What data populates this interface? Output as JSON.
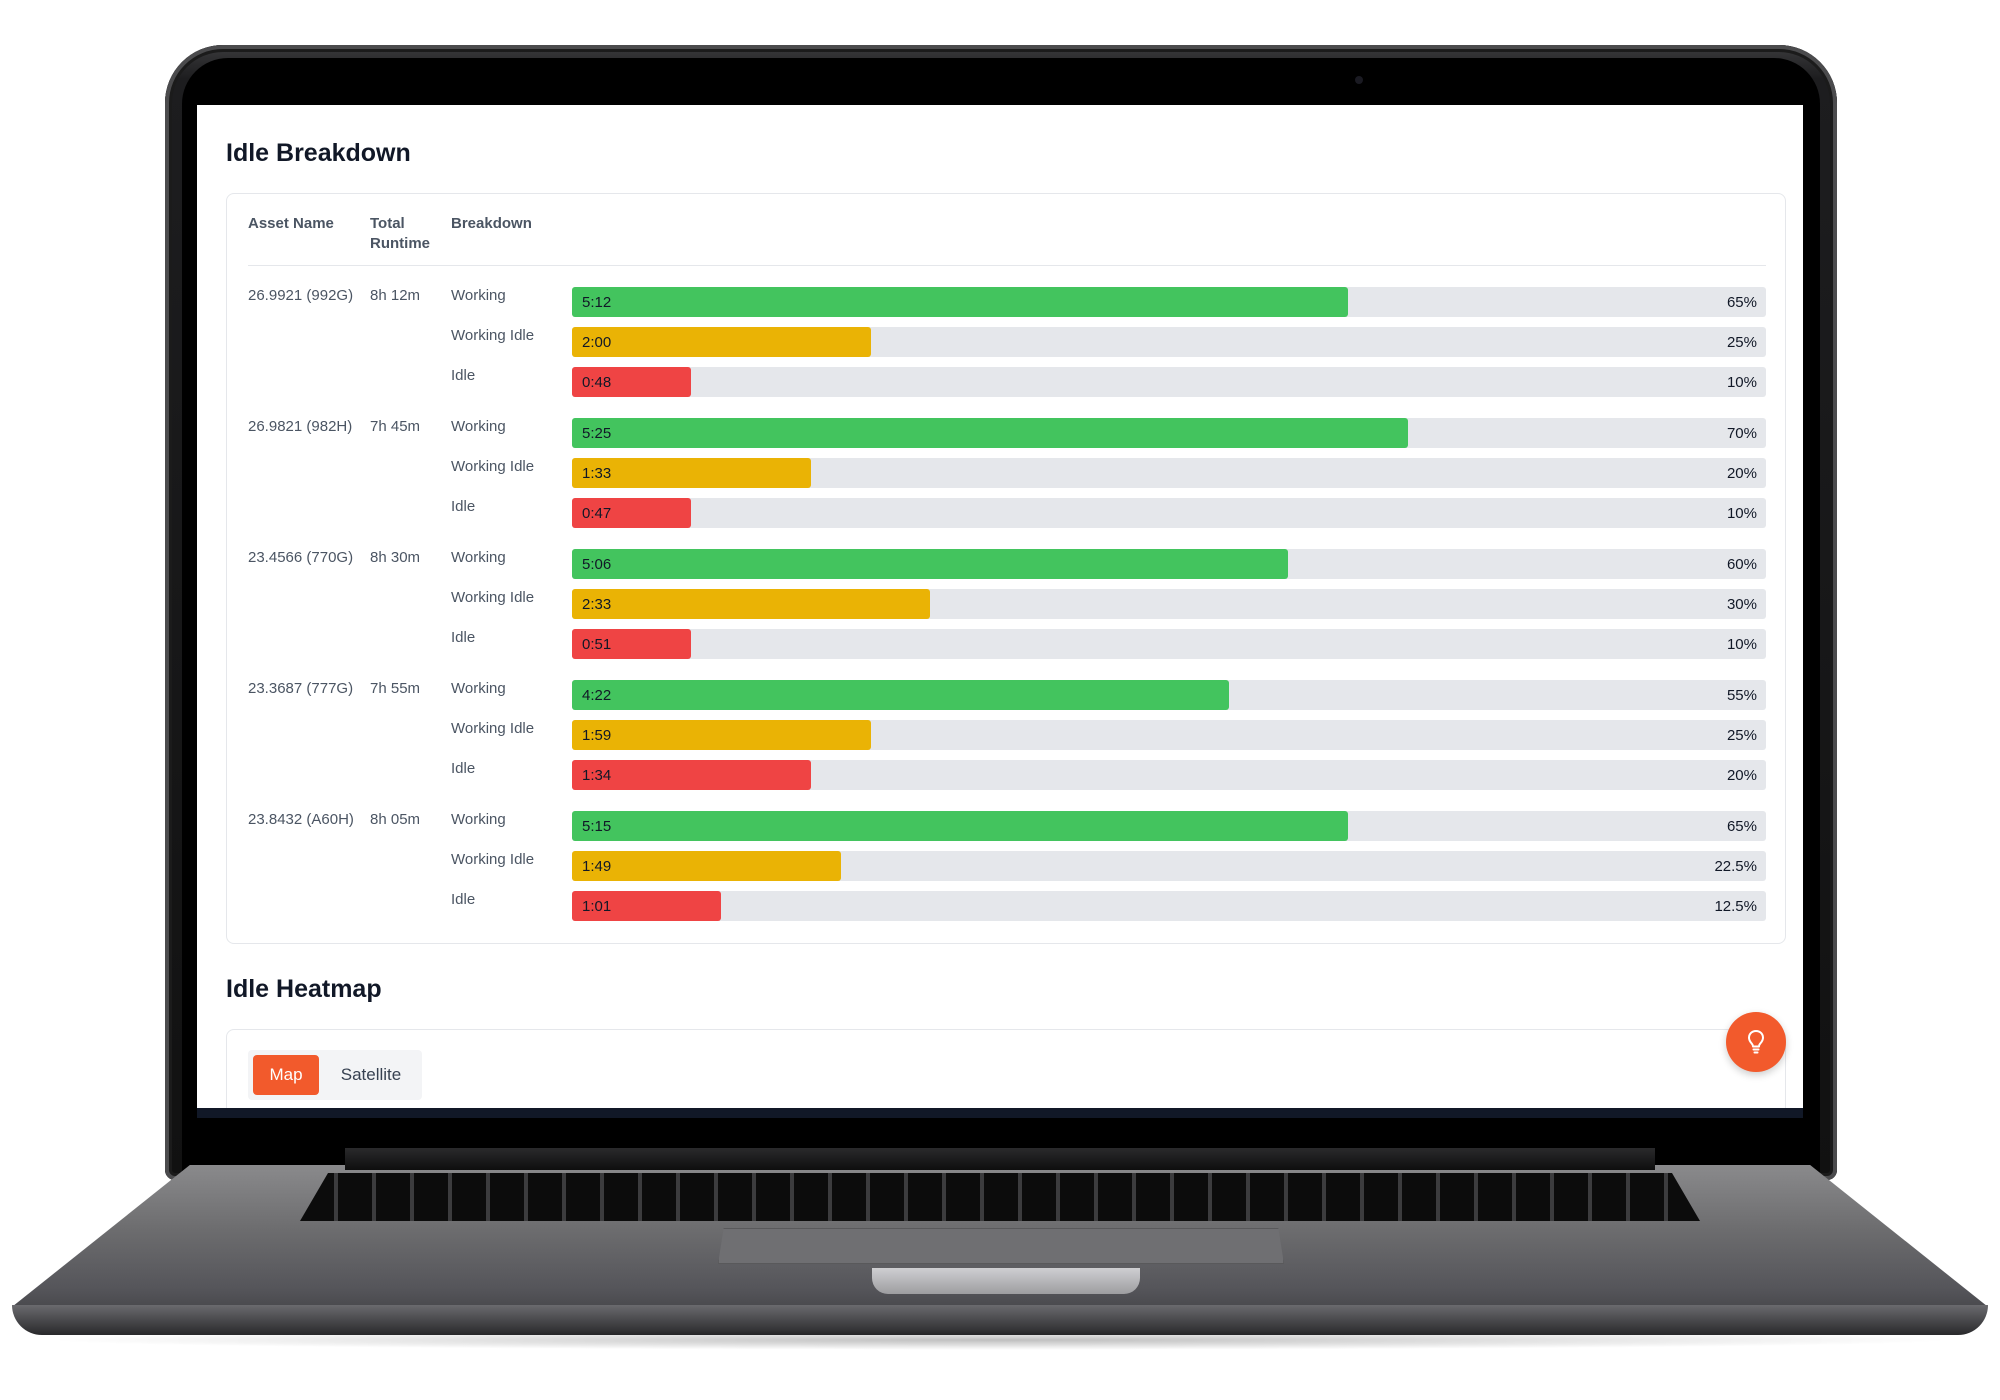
{
  "breakdown": {
    "title": "Idle Breakdown",
    "columns": {
      "asset_name": "Asset Name",
      "total_runtime": "Total Runtime",
      "breakdown": "Breakdown"
    },
    "assets": [
      {
        "name": "26.9921 (992G)",
        "runtime": "8h 12m",
        "rows": [
          {
            "label": "Working",
            "time": "5:12",
            "pct_label": "65%",
            "pct": 65,
            "color": "#43c45e"
          },
          {
            "label": "Working Idle",
            "time": "2:00",
            "pct_label": "25%",
            "pct": 25,
            "color": "#eab305"
          },
          {
            "label": "Idle",
            "time": "0:48",
            "pct_label": "10%",
            "pct": 10,
            "color": "#ef4444"
          }
        ]
      },
      {
        "name": "26.9821 (982H)",
        "runtime": "7h 45m",
        "rows": [
          {
            "label": "Working",
            "time": "5:25",
            "pct_label": "70%",
            "pct": 70,
            "color": "#43c45e"
          },
          {
            "label": "Working Idle",
            "time": "1:33",
            "pct_label": "20%",
            "pct": 20,
            "color": "#eab305"
          },
          {
            "label": "Idle",
            "time": "0:47",
            "pct_label": "10%",
            "pct": 10,
            "color": "#ef4444"
          }
        ]
      },
      {
        "name": "23.4566 (770G)",
        "runtime": "8h 30m",
        "rows": [
          {
            "label": "Working",
            "time": "5:06",
            "pct_label": "60%",
            "pct": 60,
            "color": "#43c45e"
          },
          {
            "label": "Working Idle",
            "time": "2:33",
            "pct_label": "30%",
            "pct": 30,
            "color": "#eab305"
          },
          {
            "label": "Idle",
            "time": "0:51",
            "pct_label": "10%",
            "pct": 10,
            "color": "#ef4444"
          }
        ]
      },
      {
        "name": "23.3687 (777G)",
        "runtime": "7h 55m",
        "rows": [
          {
            "label": "Working",
            "time": "4:22",
            "pct_label": "55%",
            "pct": 55,
            "color": "#43c45e"
          },
          {
            "label": "Working Idle",
            "time": "1:59",
            "pct_label": "25%",
            "pct": 25,
            "color": "#eab305"
          },
          {
            "label": "Idle",
            "time": "1:34",
            "pct_label": "20%",
            "pct": 20,
            "color": "#ef4444"
          }
        ]
      },
      {
        "name": "23.8432 (A60H)",
        "runtime": "8h 05m",
        "rows": [
          {
            "label": "Working",
            "time": "5:15",
            "pct_label": "65%",
            "pct": 65,
            "color": "#43c45e"
          },
          {
            "label": "Working Idle",
            "time": "1:49",
            "pct_label": "22.5%",
            "pct": 22.5,
            "color": "#eab305"
          },
          {
            "label": "Idle",
            "time": "1:01",
            "pct_label": "12.5%",
            "pct": 12.5,
            "color": "#ef4444"
          }
        ]
      }
    ]
  },
  "heatmap": {
    "title": "Idle Heatmap",
    "toggle": {
      "map": "Map",
      "satellite": "Satellite",
      "selected": "Map"
    }
  },
  "fab": {
    "icon": "lightbulb-icon",
    "color": "#f25a2c"
  }
}
